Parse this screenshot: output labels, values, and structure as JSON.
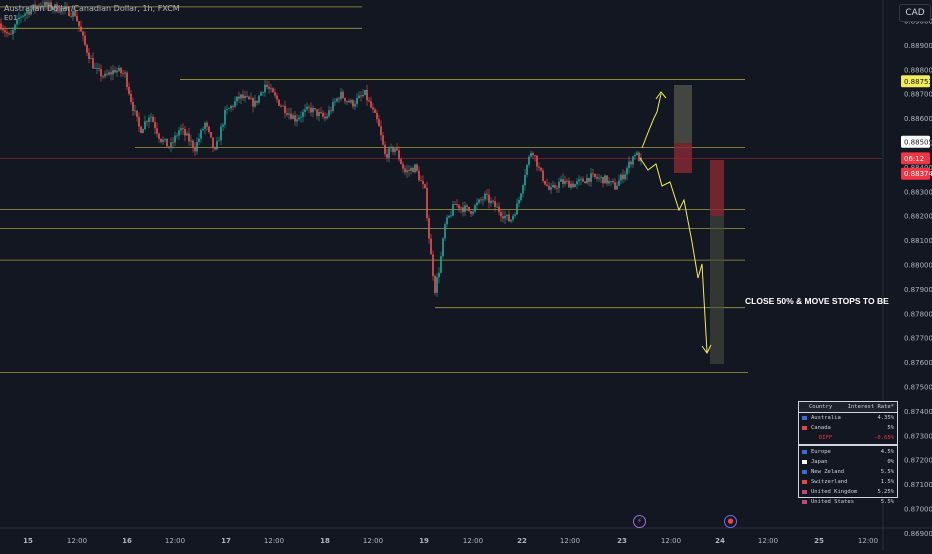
{
  "header": {
    "title": "Australian Dollar/Canadian Dollar, 1h, FXCM",
    "sub": "Ε01",
    "currency": "CAD"
  },
  "annotation": "CLOSE 50% & MOVE STOPS TO BE",
  "colors": {
    "up": "#26a69a",
    "down": "#ef5350",
    "level": "#b8b545",
    "arrow": "#f5ea5a"
  },
  "chart_data": {
    "type": "candlestick",
    "ylim": [
      0.868,
      0.8905
    ],
    "y_ticks": [
      "0.89000",
      "0.88900",
      "0.88800",
      "0.88700",
      "0.88600",
      "0.88500",
      "0.88400",
      "0.88300",
      "0.88200",
      "0.88100",
      "0.88000",
      "0.87900",
      "0.87800",
      "0.87700",
      "0.87600",
      "0.87500",
      "0.87400",
      "0.87300",
      "0.87200",
      "0.87100",
      "0.87000",
      "0.86900"
    ],
    "x_ticks": [
      "15",
      "12:00",
      "16",
      "12:00",
      "17",
      "12:00",
      "18",
      "12:00",
      "19",
      "12:00",
      "22",
      "12:00",
      "23",
      "12:00",
      "24",
      "12:00",
      "25",
      "12:00"
    ],
    "price_labels": [
      {
        "value": "0.88753",
        "price": 0.88753,
        "style": "yellow"
      },
      {
        "value": "0.88505",
        "price": 0.88505,
        "style": "white"
      },
      {
        "value": "06:12",
        "price": 0.88437,
        "style": "red"
      },
      {
        "value": "0.88374",
        "price": 0.88374,
        "style": "red"
      }
    ],
    "levels": [
      0.89058,
      0.8897,
      0.8876,
      0.88482,
      0.88228,
      0.8815,
      0.8802,
      0.87825,
      0.8756
    ],
    "current_price": 0.88437,
    "bars": 460
  },
  "rates": {
    "header": [
      "Country",
      "Interest Rate*"
    ],
    "top": [
      {
        "name": "Australia",
        "rate": "4.35%",
        "flag": "#3b6bd6"
      },
      {
        "name": "Canada",
        "rate": "5%",
        "flag": "#e84646"
      }
    ],
    "diff": {
      "label": "DIFF",
      "rate": "-0.65%"
    },
    "rows": [
      {
        "name": "Europe",
        "rate": "4.5%",
        "flag": "#3b6bd6"
      },
      {
        "name": "Japan",
        "rate": "0%",
        "flag": "#ffffff"
      },
      {
        "name": "New Zeland",
        "rate": "5.5%",
        "flag": "#3b6bd6"
      },
      {
        "name": "Switzerland",
        "rate": "1.5%",
        "flag": "#e84646"
      },
      {
        "name": "United Kingdom",
        "rate": "5.25%",
        "flag": "#c04878"
      },
      {
        "name": "United States",
        "rate": "5.5%",
        "flag": "#c04878"
      }
    ]
  },
  "events": [
    {
      "symbol": "⚡",
      "color": "#a66bd6"
    },
    {
      "symbol": "●",
      "color": "#e84646"
    }
  ]
}
